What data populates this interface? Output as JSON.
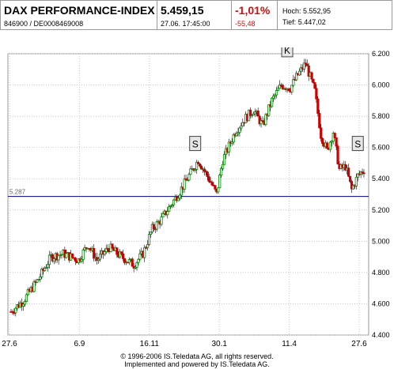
{
  "header": {
    "index_name": "DAX PERFORMANCE-INDEX",
    "wkn_isin": "846900  /  DE0008469008",
    "price": "5.459,15",
    "datetime": "27.06.  17:45:00",
    "change_pct": "-1,01%",
    "change_abs": "-55,48",
    "high_label": "Hoch:",
    "high_value": "5.552,95",
    "low_label": "Tief:",
    "low_value": "5.447,02"
  },
  "watermark": "broker",
  "footer": {
    "line1": "© 1996-2006 IS.Teledata AG, all rights reserved.",
    "line2": "Implemented and powered by IS.Teledata AG."
  },
  "colors": {
    "up": "#008800",
    "down": "#cc0000",
    "reference_line": "#000080",
    "grid": "#c8c8c8",
    "watermark": "#f2c9c9"
  },
  "chart_data": {
    "type": "candlestick",
    "title": "",
    "xlabel": "",
    "ylabel": "",
    "x_tick_labels": [
      "27.6",
      "6.9",
      "16.11",
      "30.1",
      "11.4",
      "27.6"
    ],
    "y_ticks": [
      4400,
      4600,
      4800,
      5000,
      5200,
      5400,
      5600,
      5800,
      6000,
      6200
    ],
    "y_tick_labels": [
      "4.400",
      "4.600",
      "4.800",
      "5.000",
      "5.200",
      "5.400",
      "5.600",
      "5.800",
      "6.000",
      "6.200"
    ],
    "ylim": [
      4400,
      6200
    ],
    "reference_line": {
      "value": 5287,
      "label": "5.287"
    },
    "grid": true,
    "markers": [
      {
        "label": "S",
        "x_index": 120,
        "above_value": 5560
      },
      {
        "label": "K",
        "x_index": 180,
        "above_value": 6160
      },
      {
        "label": "S",
        "x_index": 226,
        "above_value": 5560
      }
    ],
    "close_path": [
      [
        0,
        4550
      ],
      [
        8,
        4620
      ],
      [
        18,
        4760
      ],
      [
        26,
        4900
      ],
      [
        34,
        4920
      ],
      [
        44,
        4880
      ],
      [
        50,
        4980
      ],
      [
        56,
        4880
      ],
      [
        64,
        4960
      ],
      [
        72,
        4900
      ],
      [
        80,
        4850
      ],
      [
        86,
        4920
      ],
      [
        92,
        5080
      ],
      [
        98,
        5140
      ],
      [
        104,
        5230
      ],
      [
        110,
        5320
      ],
      [
        116,
        5420
      ],
      [
        122,
        5520
      ],
      [
        130,
        5380
      ],
      [
        134,
        5300
      ],
      [
        138,
        5520
      ],
      [
        146,
        5700
      ],
      [
        152,
        5780
      ],
      [
        158,
        5840
      ],
      [
        164,
        5740
      ],
      [
        170,
        5900
      ],
      [
        176,
        6000
      ],
      [
        182,
        5980
      ],
      [
        186,
        6050
      ],
      [
        192,
        6140
      ],
      [
        198,
        5960
      ],
      [
        202,
        5680
      ],
      [
        206,
        5580
      ],
      [
        210,
        5700
      ],
      [
        214,
        5460
      ],
      [
        218,
        5480
      ],
      [
        222,
        5330
      ],
      [
        226,
        5420
      ],
      [
        230,
        5460
      ]
    ]
  }
}
